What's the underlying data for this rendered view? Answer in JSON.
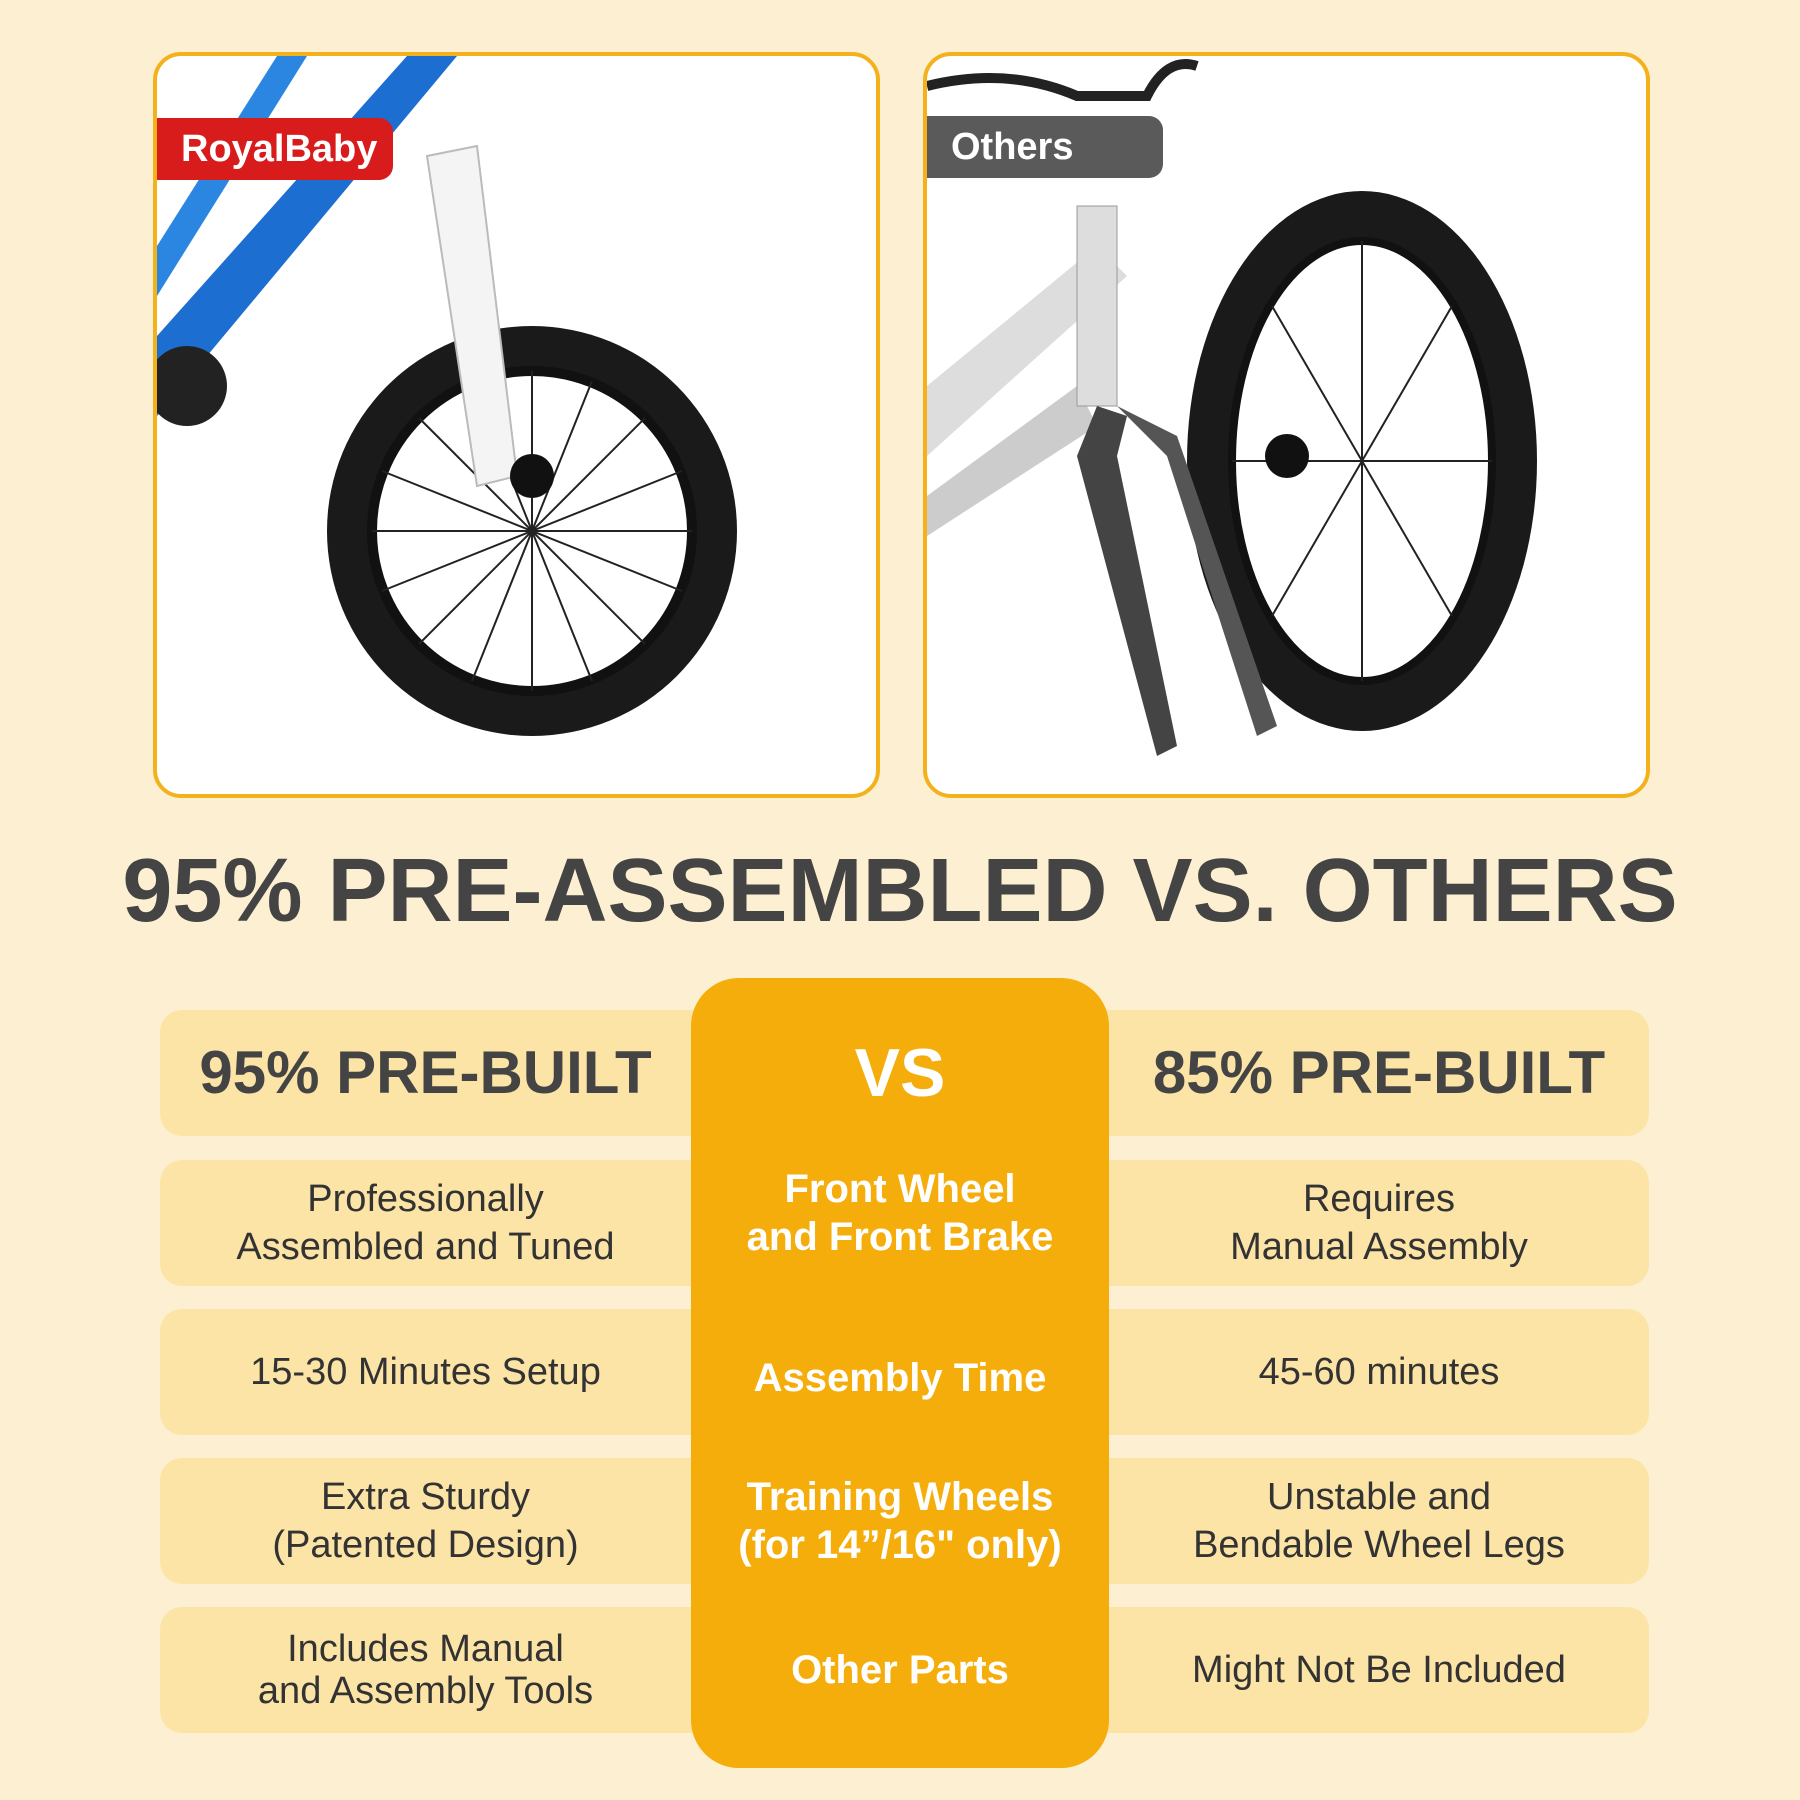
{
  "images": {
    "left_tag": "RoyalBaby",
    "right_tag": "Others"
  },
  "title": "95% PRE-ASSEMBLED VS. OTHERS",
  "colors": {
    "background": "#fdf0d2",
    "row": "#fce4a6",
    "accent": "#f5ad0c",
    "brand_red": "#d81c1c",
    "text": "#444444"
  },
  "table": {
    "header": {
      "left": "95% PRE-BUILT",
      "center": "VS",
      "right": "85% PRE-BUILT"
    },
    "rows": [
      {
        "left": "Professionally\nAssembled and Tuned",
        "center": "Front Wheel\nand Front Brake",
        "right": "Requires\nManual Assembly"
      },
      {
        "left": "15-30 Minutes Setup",
        "center": "Assembly Time",
        "right": "45-60 minutes"
      },
      {
        "left": "Extra Sturdy\n(Patented Design)",
        "center": "Training Wheels\n(for 14”/16\" only)",
        "right": "Unstable and\nBendable Wheel Legs"
      },
      {
        "left": "Includes Manual\nand Assembly Tools",
        "center": "Other Parts",
        "right": "Might Not Be Included"
      }
    ]
  }
}
